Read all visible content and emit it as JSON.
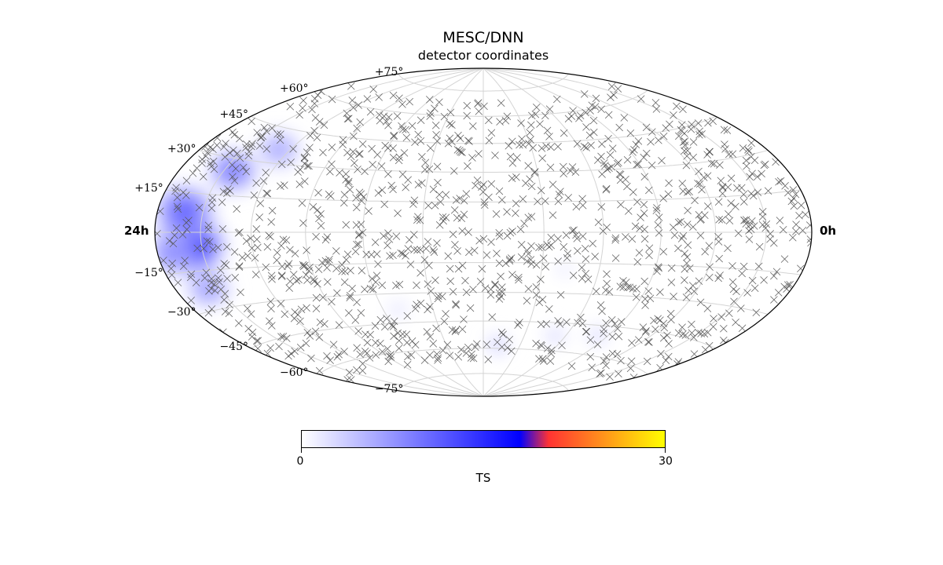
{
  "chart_data": {
    "type": "scatter",
    "projection": "hammer-aitoff",
    "title": "MESC/DNN",
    "subtitle": "detector coordinates",
    "ra_labels": {
      "left": "24h",
      "right": "0h"
    },
    "dec_labels": [
      "+75°",
      "+60°",
      "+45°",
      "+30°",
      "+15°",
      "−15°",
      "−30°",
      "−45°",
      "−60°",
      "−75°"
    ],
    "dec_values": [
      75,
      60,
      45,
      30,
      15,
      -15,
      -30,
      -45,
      -60,
      -75
    ],
    "grid": true,
    "markers": {
      "symbol": "x",
      "color": "#555555",
      "count_approx": 1200
    },
    "hotspots": [
      {
        "ra_h": 22.5,
        "dec": -5,
        "ts": 18,
        "spread_deg": 14
      },
      {
        "ra_h": 22.8,
        "dec": 8,
        "ts": 13,
        "spread_deg": 12
      },
      {
        "ra_h": 21.6,
        "dec": 25,
        "ts": 11,
        "spread_deg": 10
      },
      {
        "ra_h": 20.5,
        "dec": 36,
        "ts": 7,
        "spread_deg": 9
      },
      {
        "ra_h": 22.5,
        "dec": -22,
        "ts": 8,
        "spread_deg": 9
      },
      {
        "ra_h": 23.4,
        "dec": -8,
        "ts": 9,
        "spread_deg": 9
      },
      {
        "ra_h": 11.2,
        "dec": -58,
        "ts": 4,
        "spread_deg": 5
      },
      {
        "ra_h": 8.5,
        "dec": -52,
        "ts": 3,
        "spread_deg": 5
      },
      {
        "ra_h": 6.5,
        "dec": -50,
        "ts": 3,
        "spread_deg": 5
      },
      {
        "ra_h": 9.2,
        "dec": -18,
        "ts": 2,
        "spread_deg": 4
      },
      {
        "ra_h": 15.4,
        "dec": -38,
        "ts": 2,
        "spread_deg": 5
      }
    ]
  },
  "colorbar": {
    "min": 0,
    "max": 30,
    "min_label": "0",
    "max_label": "30",
    "label": "TS",
    "colors": [
      "#ffffff",
      "#0000ff",
      "#ff3333",
      "#ffff00"
    ],
    "stops": [
      0,
      0.6,
      0.68,
      1
    ]
  }
}
